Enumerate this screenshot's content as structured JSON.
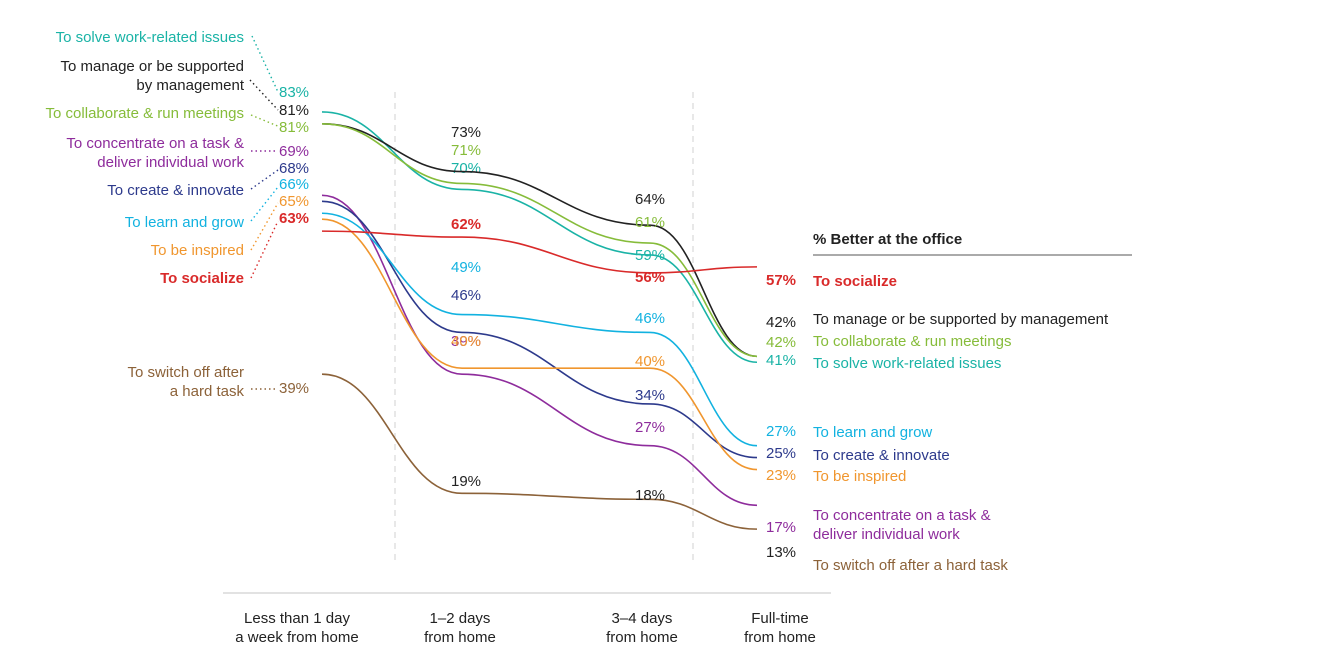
{
  "chart_data": {
    "type": "line",
    "title": "% Better at the office",
    "categories": [
      "Less than 1 day\na week from home",
      "1–2 days\nfrom  home",
      "3–4 days\nfrom home",
      "Full-time\nfrom home"
    ],
    "ylabel": "",
    "xlabel": "",
    "ylim": [
      10,
      85
    ],
    "grid": false,
    "legend": "labels at line ends",
    "series": [
      {
        "name": "To solve work-related issues",
        "left_label": "To solve work-related issues",
        "right_label": "To solve work-related issues",
        "color": "#1ab3a6",
        "values": [
          83,
          70,
          59,
          41
        ],
        "bold": false
      },
      {
        "name": "To manage or be supported by management",
        "left_label": "To manage or be supported\nby management",
        "right_label": "To manage or be supported by management",
        "color": "#222222",
        "values": [
          81,
          73,
          64,
          42
        ],
        "bold": false
      },
      {
        "name": "To collaborate & run meetings",
        "left_label": "To collaborate & run meetings",
        "right_label": "To collaborate & run meetings",
        "color": "#86bc3a",
        "values": [
          81,
          71,
          61,
          42
        ],
        "bold": false
      },
      {
        "name": "To concentrate on a task & deliver individual work",
        "left_label": "To concentrate on a task &\ndeliver individual work",
        "right_label": "To concentrate on a task &\ndeliver individual work",
        "color": "#8e2c9c",
        "values": [
          69,
          39,
          27,
          17
        ],
        "bold": false
      },
      {
        "name": "To create & innovate",
        "left_label": "To create & innovate",
        "right_label": "To create & innovate",
        "color": "#2d3a8c",
        "values": [
          68,
          46,
          34,
          25
        ],
        "bold": false
      },
      {
        "name": "To learn and grow",
        "left_label": "To learn and grow",
        "right_label": "To learn and grow",
        "color": "#12b2e0",
        "values": [
          66,
          49,
          46,
          27
        ],
        "bold": false
      },
      {
        "name": "To be inspired",
        "left_label": "To be inspired",
        "right_label": "To be inspired",
        "color": "#f0962e",
        "values": [
          65,
          40,
          40,
          23
        ],
        "bold": false
      },
      {
        "name": "To socialize",
        "left_label": "To socialize",
        "right_label": "To socialize",
        "color": "#d92a2a",
        "values": [
          63,
          62,
          56,
          57
        ],
        "bold": true
      },
      {
        "name": "To switch off after a hard task",
        "left_label": "To switch off after\na hard task",
        "right_label": "To switch off after a hard task",
        "color": "#8c6239",
        "values": [
          39,
          19,
          18,
          13
        ],
        "bold": false
      }
    ]
  },
  "colors": {
    "axis": "#d9d9d9",
    "divider": "#d0d0d0",
    "text": "#222222"
  }
}
